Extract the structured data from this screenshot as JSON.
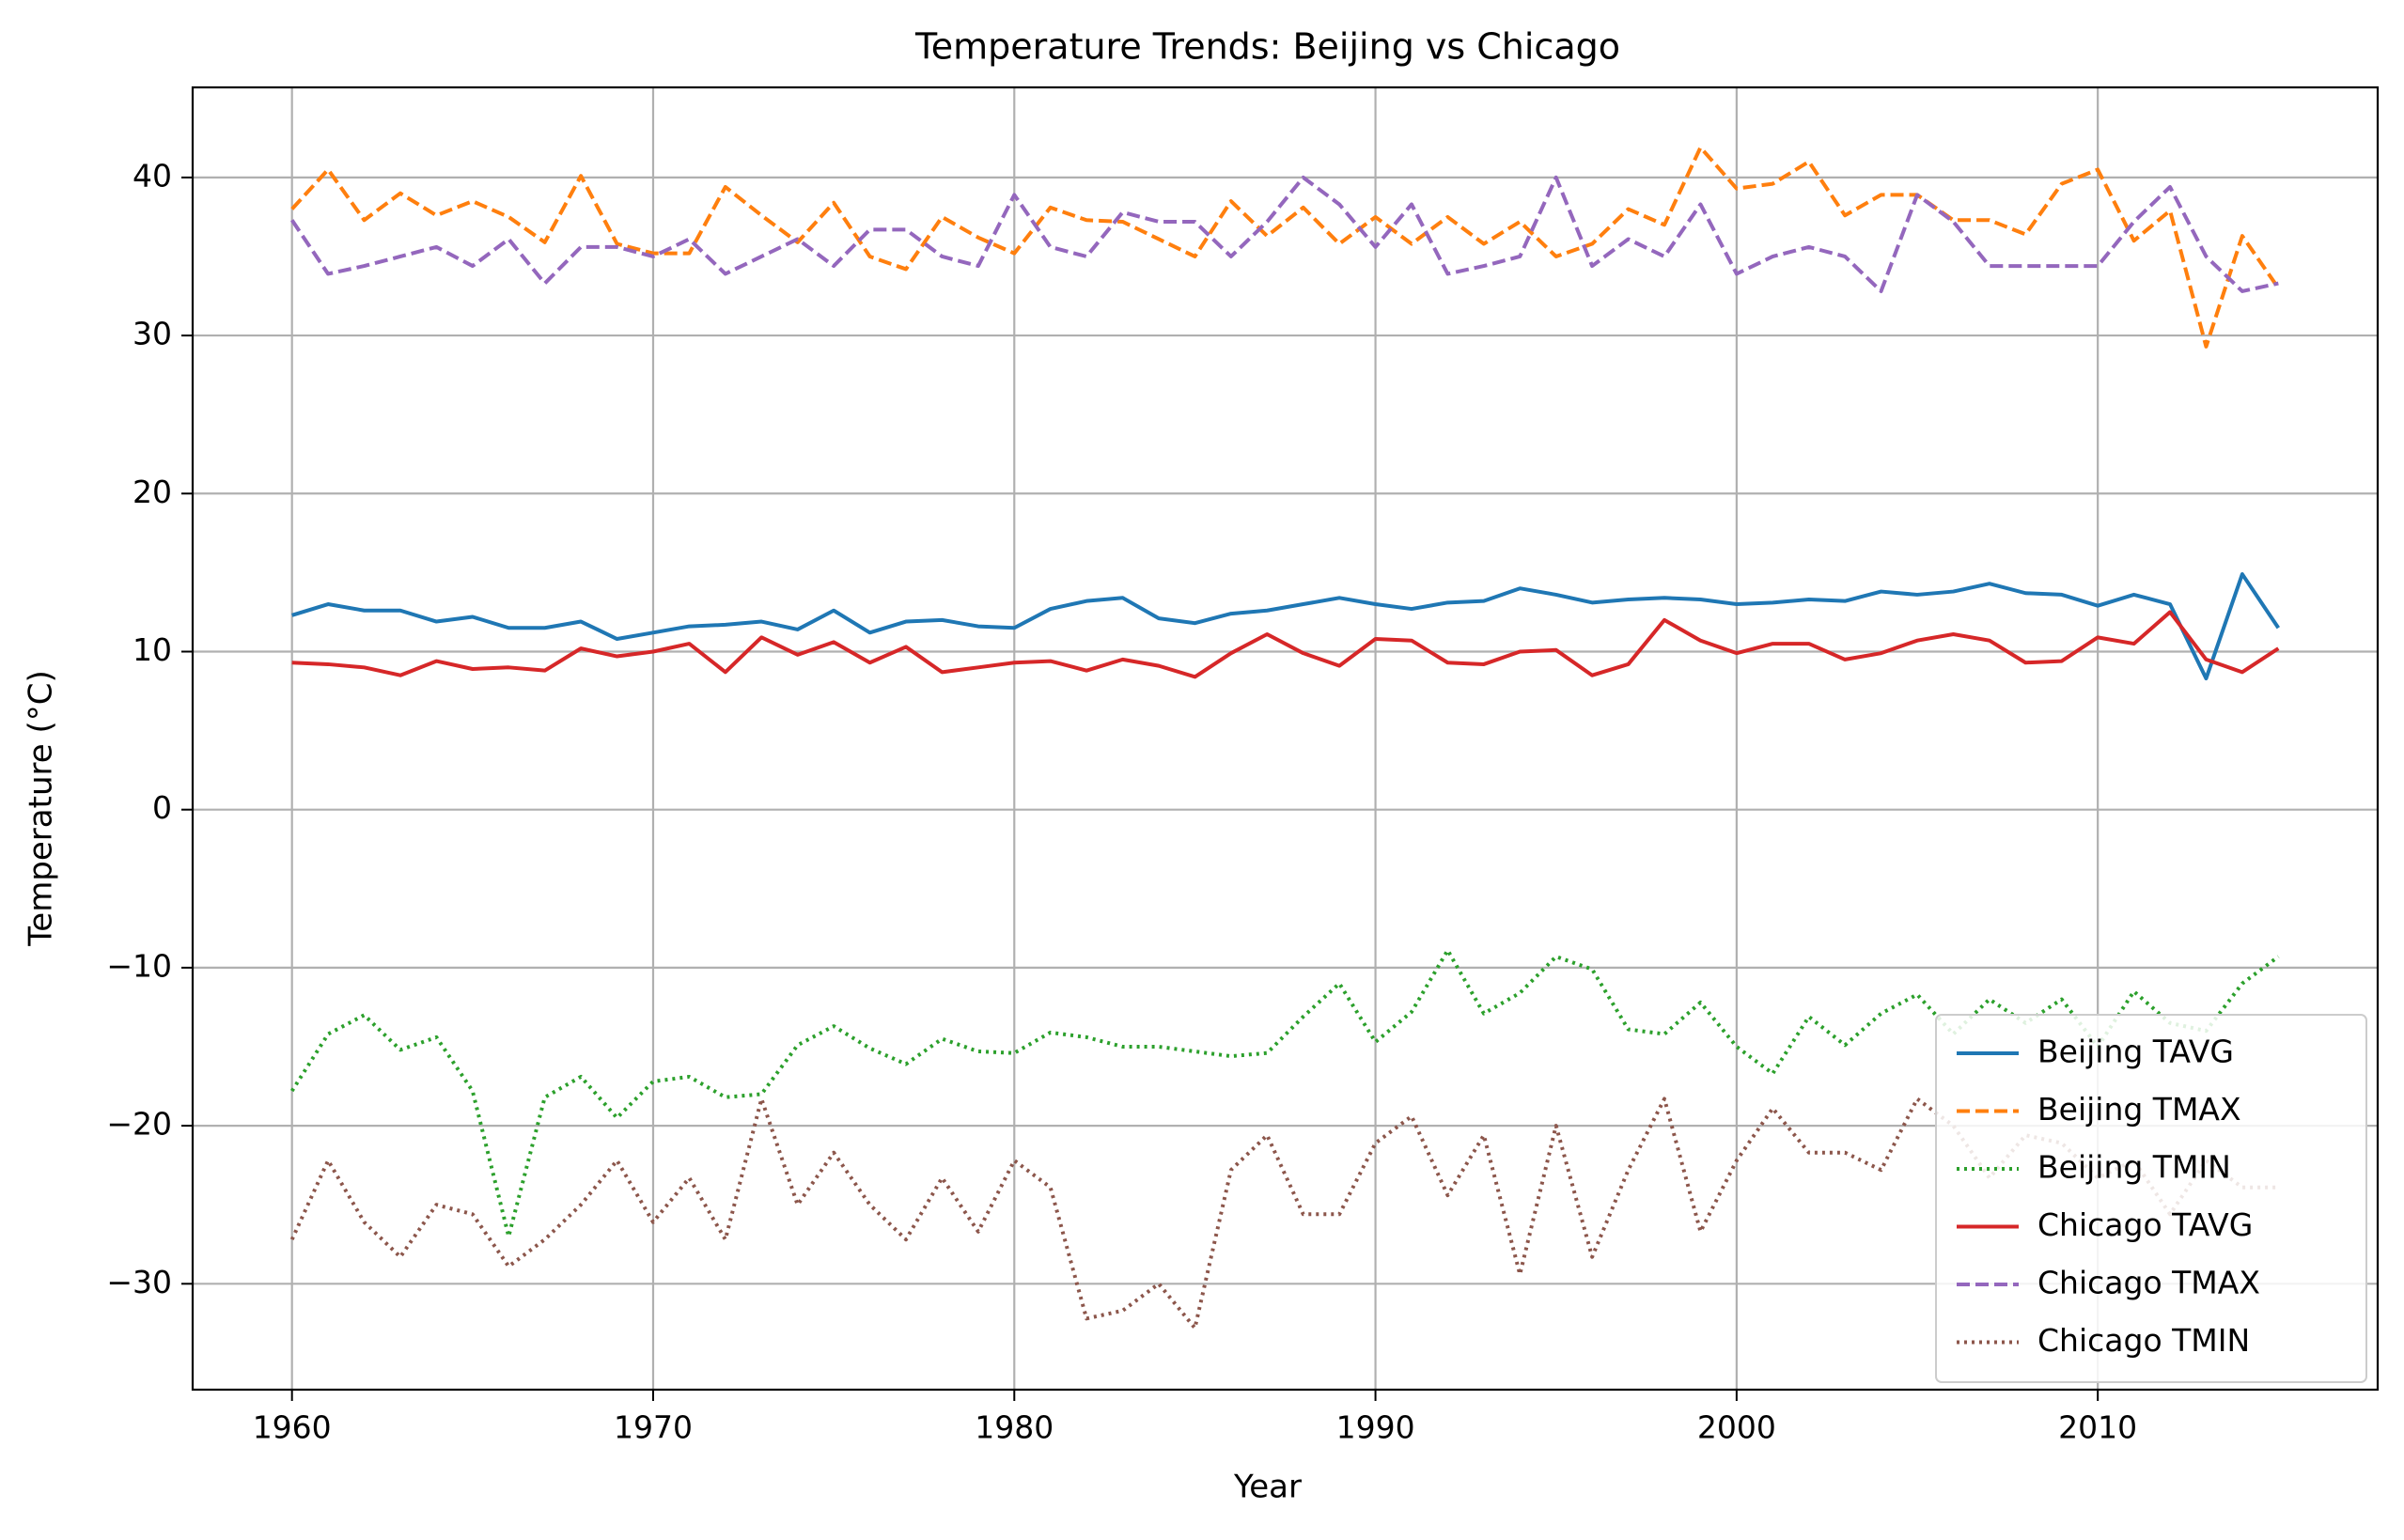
{
  "chart_data": {
    "type": "line",
    "title": "Temperature Trends: Beijing vs Chicago",
    "xlabel": "Year",
    "ylabel": "Temperature (°C)",
    "xlim": [
      1957.25,
      2017.75
    ],
    "ylim": [
      -36.7,
      45.7
    ],
    "x_ticks": [
      1960,
      1970,
      1980,
      1990,
      2000,
      2010
    ],
    "y_ticks": [
      -30,
      -20,
      -10,
      0,
      10,
      20,
      30,
      40
    ],
    "x_tick_labels": [
      "1960",
      "1970",
      "1980",
      "1990",
      "2000",
      "2010"
    ],
    "y_tick_labels": [
      "−30",
      "−20",
      "−10",
      "0",
      "10",
      "20",
      "30",
      "40"
    ],
    "grid": true,
    "legend_position": "lower-right",
    "x": [
      1960,
      1961,
      1962,
      1963,
      1964,
      1965,
      1966,
      1967,
      1968,
      1969,
      1970,
      1971,
      1972,
      1973,
      1974,
      1975,
      1976,
      1977,
      1978,
      1979,
      1980,
      1981,
      1982,
      1983,
      1984,
      1985,
      1986,
      1987,
      1988,
      1989,
      1990,
      1991,
      1992,
      1993,
      1994,
      1995,
      1996,
      1997,
      1998,
      1999,
      2000,
      2001,
      2002,
      2003,
      2004,
      2005,
      2006,
      2007,
      2008,
      2009,
      2010,
      2011,
      2012,
      2013,
      2014,
      2015
    ],
    "series": [
      {
        "name": "Beijing TAVG",
        "color": "#1f77b4",
        "dash": "solid",
        "values": [
          12.3,
          13.0,
          12.6,
          12.6,
          11.9,
          12.2,
          11.5,
          11.5,
          11.9,
          10.8,
          11.2,
          11.6,
          11.7,
          11.9,
          11.4,
          12.6,
          11.2,
          11.9,
          12.0,
          11.6,
          11.5,
          12.7,
          13.2,
          13.4,
          12.1,
          11.8,
          12.4,
          12.6,
          13.0,
          13.4,
          13.0,
          12.7,
          13.1,
          13.2,
          14.0,
          13.6,
          13.1,
          13.3,
          13.4,
          13.3,
          13.0,
          13.1,
          13.3,
          13.2,
          13.8,
          13.6,
          13.8,
          14.3,
          13.7,
          13.6,
          12.9,
          13.6,
          13.0,
          8.3,
          14.9,
          11.5
        ]
      },
      {
        "name": "Beijing TMAX",
        "color": "#ff7f0e",
        "dash": "dashed",
        "values": [
          38.0,
          40.5,
          37.3,
          39.0,
          37.6,
          38.5,
          37.5,
          35.9,
          40.1,
          35.8,
          35.2,
          35.2,
          39.4,
          37.6,
          35.9,
          38.4,
          35.0,
          34.2,
          37.5,
          36.2,
          35.2,
          38.1,
          37.3,
          37.2,
          36.1,
          35.0,
          38.5,
          36.3,
          38.1,
          35.8,
          37.5,
          35.8,
          37.5,
          35.8,
          37.2,
          35.0,
          35.8,
          38.0,
          37.0,
          41.9,
          39.3,
          39.6,
          41.0,
          37.6,
          38.9,
          38.9,
          37.3,
          37.3,
          36.4,
          39.6,
          40.5,
          36.0,
          37.9,
          29.3,
          36.3,
          33.0
        ]
      },
      {
        "name": "Beijing TMIN",
        "color": "#2ca02c",
        "dash": "dotted",
        "values": [
          -17.8,
          -14.2,
          -13.0,
          -15.2,
          -14.4,
          -17.8,
          -27.0,
          -18.2,
          -16.9,
          -19.5,
          -17.2,
          -16.9,
          -18.2,
          -18.0,
          -14.9,
          -13.7,
          -15.1,
          -16.1,
          -14.5,
          -15.3,
          -15.4,
          -14.1,
          -14.4,
          -15.0,
          -15.0,
          -15.3,
          -15.6,
          -15.4,
          -13.1,
          -11.0,
          -14.7,
          -12.8,
          -8.9,
          -12.9,
          -11.6,
          -9.3,
          -10.1,
          -13.9,
          -14.2,
          -12.2,
          -15.0,
          -16.7,
          -13.1,
          -14.9,
          -12.9,
          -11.7,
          -14.2,
          -12.0,
          -13.5,
          -12.0,
          -15.0,
          -11.5,
          -13.5,
          -14.0,
          -11.0,
          -9.3
        ]
      },
      {
        "name": "Chicago TAVG",
        "color": "#d62728",
        "dash": "solid",
        "values": [
          9.3,
          9.2,
          9.0,
          8.5,
          9.4,
          8.9,
          9.0,
          8.8,
          10.2,
          9.7,
          10.0,
          10.5,
          8.7,
          10.9,
          9.8,
          10.6,
          9.3,
          10.3,
          8.7,
          9.0,
          9.3,
          9.4,
          8.8,
          9.5,
          9.1,
          8.4,
          9.9,
          11.1,
          9.9,
          9.1,
          10.8,
          10.7,
          9.3,
          9.2,
          10.0,
          10.1,
          8.5,
          9.2,
          12.0,
          10.7,
          9.9,
          10.5,
          10.5,
          9.5,
          9.9,
          10.7,
          11.1,
          10.7,
          9.3,
          9.4,
          10.9,
          10.5,
          12.5,
          9.5,
          8.7,
          10.2
        ]
      },
      {
        "name": "Chicago TMAX",
        "color": "#9467bd",
        "dash": "dashed",
        "values": [
          37.3,
          33.9,
          34.4,
          35.0,
          35.6,
          34.4,
          36.1,
          33.3,
          35.6,
          35.6,
          35.0,
          36.1,
          33.9,
          35.0,
          36.1,
          34.4,
          36.7,
          36.7,
          35.0,
          34.4,
          38.9,
          35.6,
          35.0,
          37.8,
          37.2,
          37.2,
          35.0,
          37.2,
          40.0,
          38.3,
          35.6,
          38.3,
          33.9,
          34.4,
          35.0,
          40.0,
          34.4,
          36.1,
          35.0,
          38.3,
          33.9,
          35.0,
          35.6,
          35.0,
          32.8,
          38.9,
          37.2,
          34.4,
          34.4,
          34.4,
          34.4,
          37.2,
          39.4,
          35.0,
          32.8,
          33.3
        ]
      },
      {
        "name": "Chicago TMIN",
        "color": "#8c564b",
        "dash": "dotted",
        "values": [
          -27.2,
          -22.2,
          -26.1,
          -28.3,
          -25.0,
          -25.6,
          -28.9,
          -27.2,
          -25.0,
          -22.2,
          -26.1,
          -23.3,
          -27.2,
          -18.3,
          -25.0,
          -21.7,
          -25.0,
          -27.2,
          -23.3,
          -26.7,
          -22.2,
          -23.9,
          -32.2,
          -31.7,
          -30.0,
          -32.8,
          -22.8,
          -20.6,
          -25.6,
          -25.6,
          -21.1,
          -19.4,
          -24.4,
          -20.6,
          -29.4,
          -20.0,
          -28.3,
          -22.8,
          -18.3,
          -26.7,
          -22.2,
          -18.9,
          -21.7,
          -21.7,
          -22.8,
          -18.3,
          -20.0,
          -23.3,
          -20.6,
          -21.1,
          -23.3,
          -22.2,
          -25.6,
          -22.2,
          -23.9,
          -23.9
        ]
      }
    ]
  }
}
